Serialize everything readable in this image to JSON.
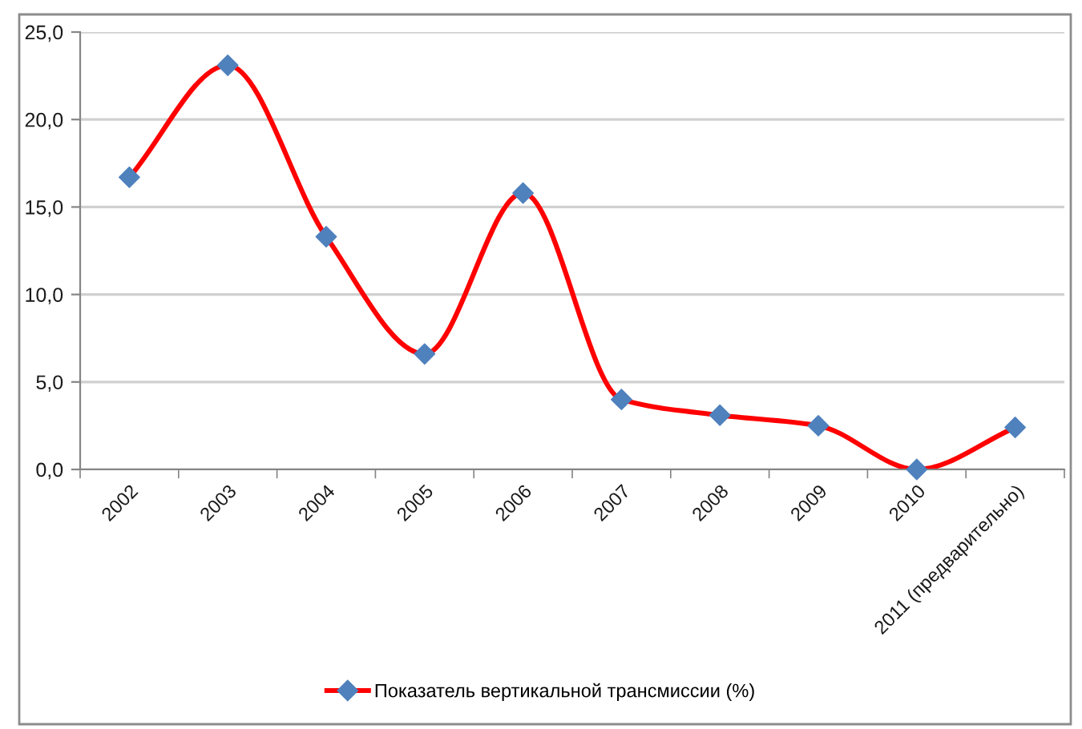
{
  "chart_data": {
    "type": "line",
    "categories": [
      "2002",
      "2003",
      "2004",
      "2005",
      "2006",
      "2007",
      "2008",
      "2009",
      "2010",
      "2011 (предварительно)"
    ],
    "series": [
      {
        "name": "Показатель вертикальной трансмиссии (%)",
        "color": "#ff0000",
        "colors": [
          "#4f81bd",
          "#4f81bd",
          "#4f81bd",
          "#4f81bd",
          "#4f81bd",
          "#4f81bd",
          "#4f81bd",
          "#4f81bd",
          "#4f81bd",
          "#4f81bd"
        ],
        "values": [
          16.7,
          23.1,
          13.3,
          6.6,
          15.8,
          4.0,
          3.1,
          2.5,
          0.0,
          2.4
        ]
      }
    ],
    "ylim": [
      0,
      25
    ],
    "yticks": [
      {
        "value": 0,
        "label": "0,0"
      },
      {
        "value": 5,
        "label": "5,0"
      },
      {
        "value": 10,
        "label": "10,0"
      },
      {
        "value": 15,
        "label": "15,0"
      },
      {
        "value": 20,
        "label": "20,0"
      },
      {
        "value": 25,
        "label": "25,0"
      }
    ],
    "grid": "y",
    "legend": "bottom",
    "marker": "diamond",
    "line_style": "solid"
  }
}
